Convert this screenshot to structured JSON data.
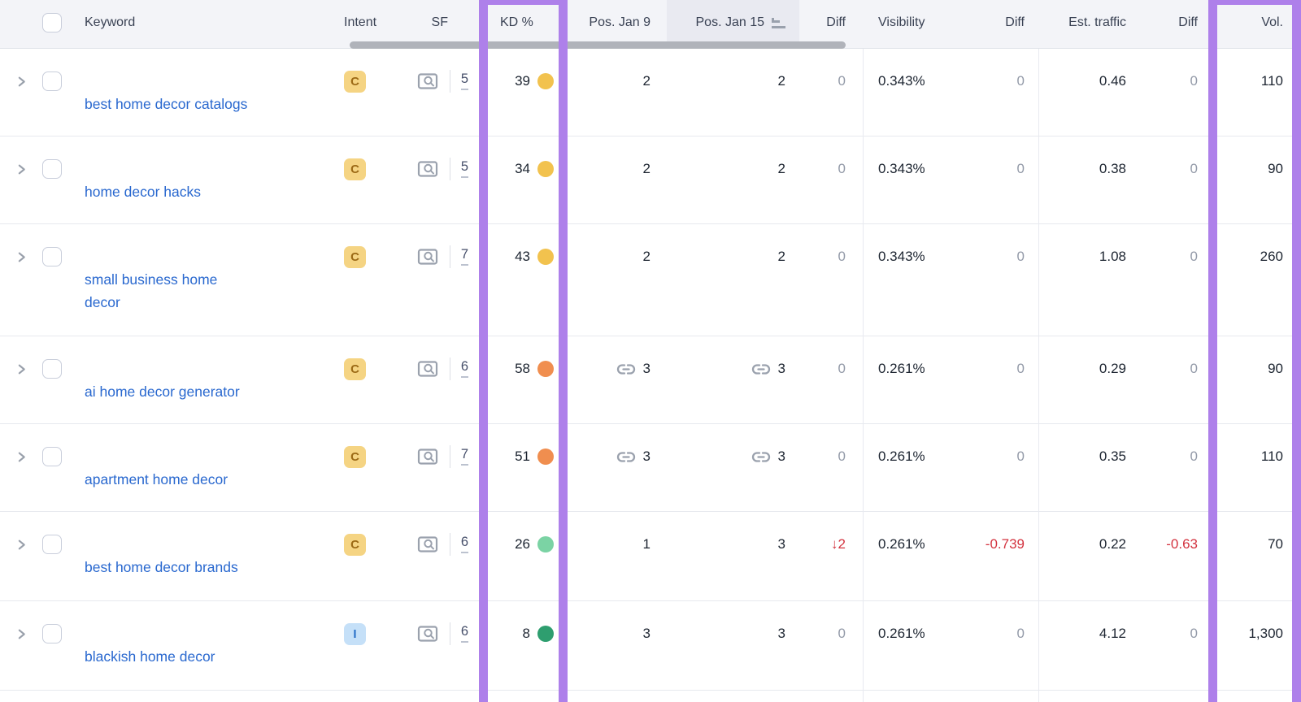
{
  "header": {
    "keyword": "Keyword",
    "intent": "Intent",
    "sf": "SF",
    "kd": "KD %",
    "pos_jan9": "Pos. Jan 9",
    "pos_jan15": "Pos. Jan 15",
    "diff_pos": "Diff",
    "visibility": "Visibility",
    "diff_visibility": "Diff",
    "est_traffic": "Est. traffic",
    "diff_traffic": "Diff",
    "vol": "Vol."
  },
  "sorted_column": "Pos. Jan 15",
  "highlighted_columns": [
    "KD %",
    "Vol."
  ],
  "rows": [
    {
      "keyword": "best home decor catalogs",
      "intent": "C",
      "sf": "5",
      "kd": "39",
      "kd_level": "amber",
      "pos_jan9": "2",
      "pos_jan9_link": false,
      "pos_jan15": "2",
      "pos_jan15_link": false,
      "diff_pos": "0",
      "visibility": "0.343%",
      "diff_visibility": "0",
      "est_traffic": "0.46",
      "diff_traffic": "0",
      "vol": "110"
    },
    {
      "keyword": "home decor hacks",
      "intent": "C",
      "sf": "5",
      "kd": "34",
      "kd_level": "amber",
      "pos_jan9": "2",
      "pos_jan9_link": false,
      "pos_jan15": "2",
      "pos_jan15_link": false,
      "diff_pos": "0",
      "visibility": "0.343%",
      "diff_visibility": "0",
      "est_traffic": "0.38",
      "diff_traffic": "0",
      "vol": "90"
    },
    {
      "keyword": "small business home\ndecor",
      "intent": "C",
      "sf": "7",
      "kd": "43",
      "kd_level": "amber",
      "pos_jan9": "2",
      "pos_jan9_link": false,
      "pos_jan15": "2",
      "pos_jan15_link": false,
      "diff_pos": "0",
      "visibility": "0.343%",
      "diff_visibility": "0",
      "est_traffic": "1.08",
      "diff_traffic": "0",
      "vol": "260"
    },
    {
      "keyword": "ai home decor generator",
      "intent": "C",
      "sf": "6",
      "kd": "58",
      "kd_level": "orange",
      "pos_jan9": "3",
      "pos_jan9_link": true,
      "pos_jan15": "3",
      "pos_jan15_link": true,
      "diff_pos": "0",
      "visibility": "0.261%",
      "diff_visibility": "0",
      "est_traffic": "0.29",
      "diff_traffic": "0",
      "vol": "90"
    },
    {
      "keyword": "apartment home decor",
      "intent": "C",
      "sf": "7",
      "kd": "51",
      "kd_level": "orange",
      "pos_jan9": "3",
      "pos_jan9_link": true,
      "pos_jan15": "3",
      "pos_jan15_link": true,
      "diff_pos": "0",
      "visibility": "0.261%",
      "diff_visibility": "0",
      "est_traffic": "0.35",
      "diff_traffic": "0",
      "vol": "110"
    },
    {
      "keyword": "best home decor brands",
      "intent": "C",
      "sf": "6",
      "kd": "26",
      "kd_level": "green_light",
      "pos_jan9": "1",
      "pos_jan9_link": false,
      "pos_jan15": "3",
      "pos_jan15_link": false,
      "diff_pos": "↓2",
      "visibility": "0.261%",
      "diff_visibility": "-0.739",
      "est_traffic": "0.22",
      "diff_traffic": "-0.63",
      "vol": "70"
    },
    {
      "keyword": "blackish home decor",
      "intent": "I",
      "sf": "6",
      "kd": "8",
      "kd_level": "green",
      "pos_jan9": "3",
      "pos_jan9_link": false,
      "pos_jan15": "3",
      "pos_jan15_link": false,
      "diff_pos": "0",
      "visibility": "0.261%",
      "diff_visibility": "0",
      "est_traffic": "4.12",
      "diff_traffic": "0",
      "vol": "1,300"
    }
  ],
  "colors": {
    "highlight_purple": "#ae80ea",
    "kd_amber": "#f2c24e",
    "kd_orange": "#f08e4f",
    "kd_green_light": "#7bd3a4",
    "kd_green": "#2e9e6f",
    "negative_red": "#d3333f",
    "link_blue": "#2968cf",
    "intent_c_bg": "#f5d483",
    "intent_c_text": "#9c6a16",
    "intent_i_bg": "#c5e0f8",
    "intent_i_text": "#2a70c8"
  }
}
